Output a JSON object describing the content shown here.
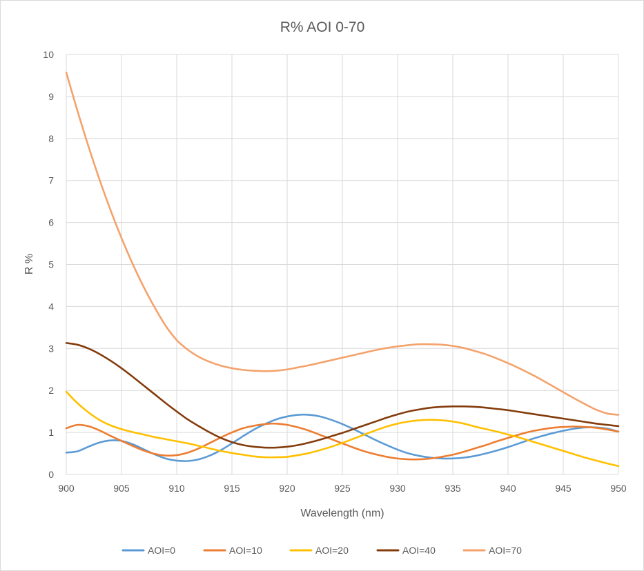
{
  "chart_data": {
    "type": "line",
    "title": "R% AOI 0-70",
    "xlabel": "Wavelength (nm)",
    "ylabel": "R  %",
    "xlim": [
      900,
      950
    ],
    "ylim": [
      0,
      10
    ],
    "xticks": [
      900,
      905,
      910,
      915,
      920,
      925,
      930,
      935,
      940,
      945,
      950
    ],
    "yticks": [
      0,
      1,
      2,
      3,
      4,
      5,
      6,
      7,
      8,
      9,
      10
    ],
    "grid": true,
    "legend_position": "bottom",
    "x": [
      900,
      901,
      902,
      903,
      904,
      905,
      906,
      907,
      908,
      909,
      910,
      911,
      912,
      913,
      914,
      915,
      916,
      917,
      918,
      919,
      920,
      921,
      922,
      923,
      924,
      925,
      926,
      927,
      928,
      929,
      930,
      931,
      932,
      933,
      934,
      935,
      936,
      937,
      938,
      939,
      940,
      941,
      942,
      943,
      944,
      945,
      946,
      947,
      948,
      949,
      950
    ],
    "series": [
      {
        "name": "AOI=0",
        "color": "#5b9bd5",
        "values": [
          0.52,
          0.55,
          0.66,
          0.76,
          0.81,
          0.8,
          0.72,
          0.6,
          0.48,
          0.38,
          0.33,
          0.32,
          0.36,
          0.45,
          0.58,
          0.74,
          0.91,
          1.07,
          1.2,
          1.31,
          1.38,
          1.42,
          1.42,
          1.38,
          1.3,
          1.2,
          1.08,
          0.95,
          0.82,
          0.7,
          0.59,
          0.5,
          0.44,
          0.4,
          0.38,
          0.38,
          0.4,
          0.44,
          0.5,
          0.57,
          0.65,
          0.74,
          0.83,
          0.91,
          0.98,
          1.04,
          1.09,
          1.12,
          1.12,
          1.09,
          1.02
        ]
      },
      {
        "name": "AOI=10",
        "color": "#ed7d31",
        "values": [
          1.1,
          1.18,
          1.15,
          1.05,
          0.92,
          0.8,
          0.68,
          0.57,
          0.49,
          0.45,
          0.46,
          0.52,
          0.62,
          0.75,
          0.88,
          1.0,
          1.1,
          1.16,
          1.2,
          1.21,
          1.18,
          1.12,
          1.04,
          0.94,
          0.84,
          0.74,
          0.64,
          0.55,
          0.48,
          0.42,
          0.38,
          0.36,
          0.36,
          0.38,
          0.42,
          0.47,
          0.54,
          0.62,
          0.7,
          0.79,
          0.87,
          0.95,
          1.02,
          1.07,
          1.11,
          1.13,
          1.14,
          1.13,
          1.11,
          1.07,
          1.02
        ]
      },
      {
        "name": "AOI=20",
        "color": "#ffc000",
        "values": [
          1.97,
          1.7,
          1.48,
          1.3,
          1.17,
          1.08,
          1.01,
          0.95,
          0.89,
          0.84,
          0.79,
          0.74,
          0.68,
          0.62,
          0.56,
          0.51,
          0.47,
          0.43,
          0.41,
          0.41,
          0.42,
          0.46,
          0.51,
          0.58,
          0.66,
          0.75,
          0.85,
          0.95,
          1.05,
          1.14,
          1.21,
          1.26,
          1.29,
          1.3,
          1.29,
          1.26,
          1.21,
          1.14,
          1.08,
          1.02,
          0.95,
          0.88,
          0.8,
          0.72,
          0.64,
          0.56,
          0.48,
          0.4,
          0.33,
          0.26,
          0.2
        ]
      },
      {
        "name": "AOI=40",
        "color": "#843c0c",
        "values": [
          3.13,
          3.09,
          3.0,
          2.87,
          2.71,
          2.53,
          2.33,
          2.12,
          1.91,
          1.7,
          1.5,
          1.31,
          1.15,
          1.0,
          0.87,
          0.77,
          0.7,
          0.66,
          0.64,
          0.64,
          0.66,
          0.7,
          0.76,
          0.83,
          0.91,
          0.99,
          1.08,
          1.17,
          1.26,
          1.35,
          1.43,
          1.5,
          1.55,
          1.59,
          1.61,
          1.62,
          1.62,
          1.61,
          1.59,
          1.56,
          1.53,
          1.49,
          1.45,
          1.41,
          1.37,
          1.33,
          1.29,
          1.25,
          1.21,
          1.18,
          1.15
        ]
      },
      {
        "name": "AOI=70",
        "color": "#f4a26b",
        "values": [
          9.57,
          8.67,
          7.82,
          7.03,
          6.3,
          5.63,
          5.02,
          4.47,
          3.98,
          3.54,
          3.2,
          2.97,
          2.8,
          2.68,
          2.59,
          2.53,
          2.49,
          2.47,
          2.46,
          2.47,
          2.5,
          2.55,
          2.6,
          2.66,
          2.72,
          2.78,
          2.84,
          2.9,
          2.96,
          3.01,
          3.05,
          3.08,
          3.1,
          3.1,
          3.09,
          3.06,
          3.01,
          2.94,
          2.86,
          2.76,
          2.65,
          2.53,
          2.4,
          2.26,
          2.11,
          1.96,
          1.81,
          1.67,
          1.54,
          1.45,
          1.42
        ]
      }
    ]
  }
}
